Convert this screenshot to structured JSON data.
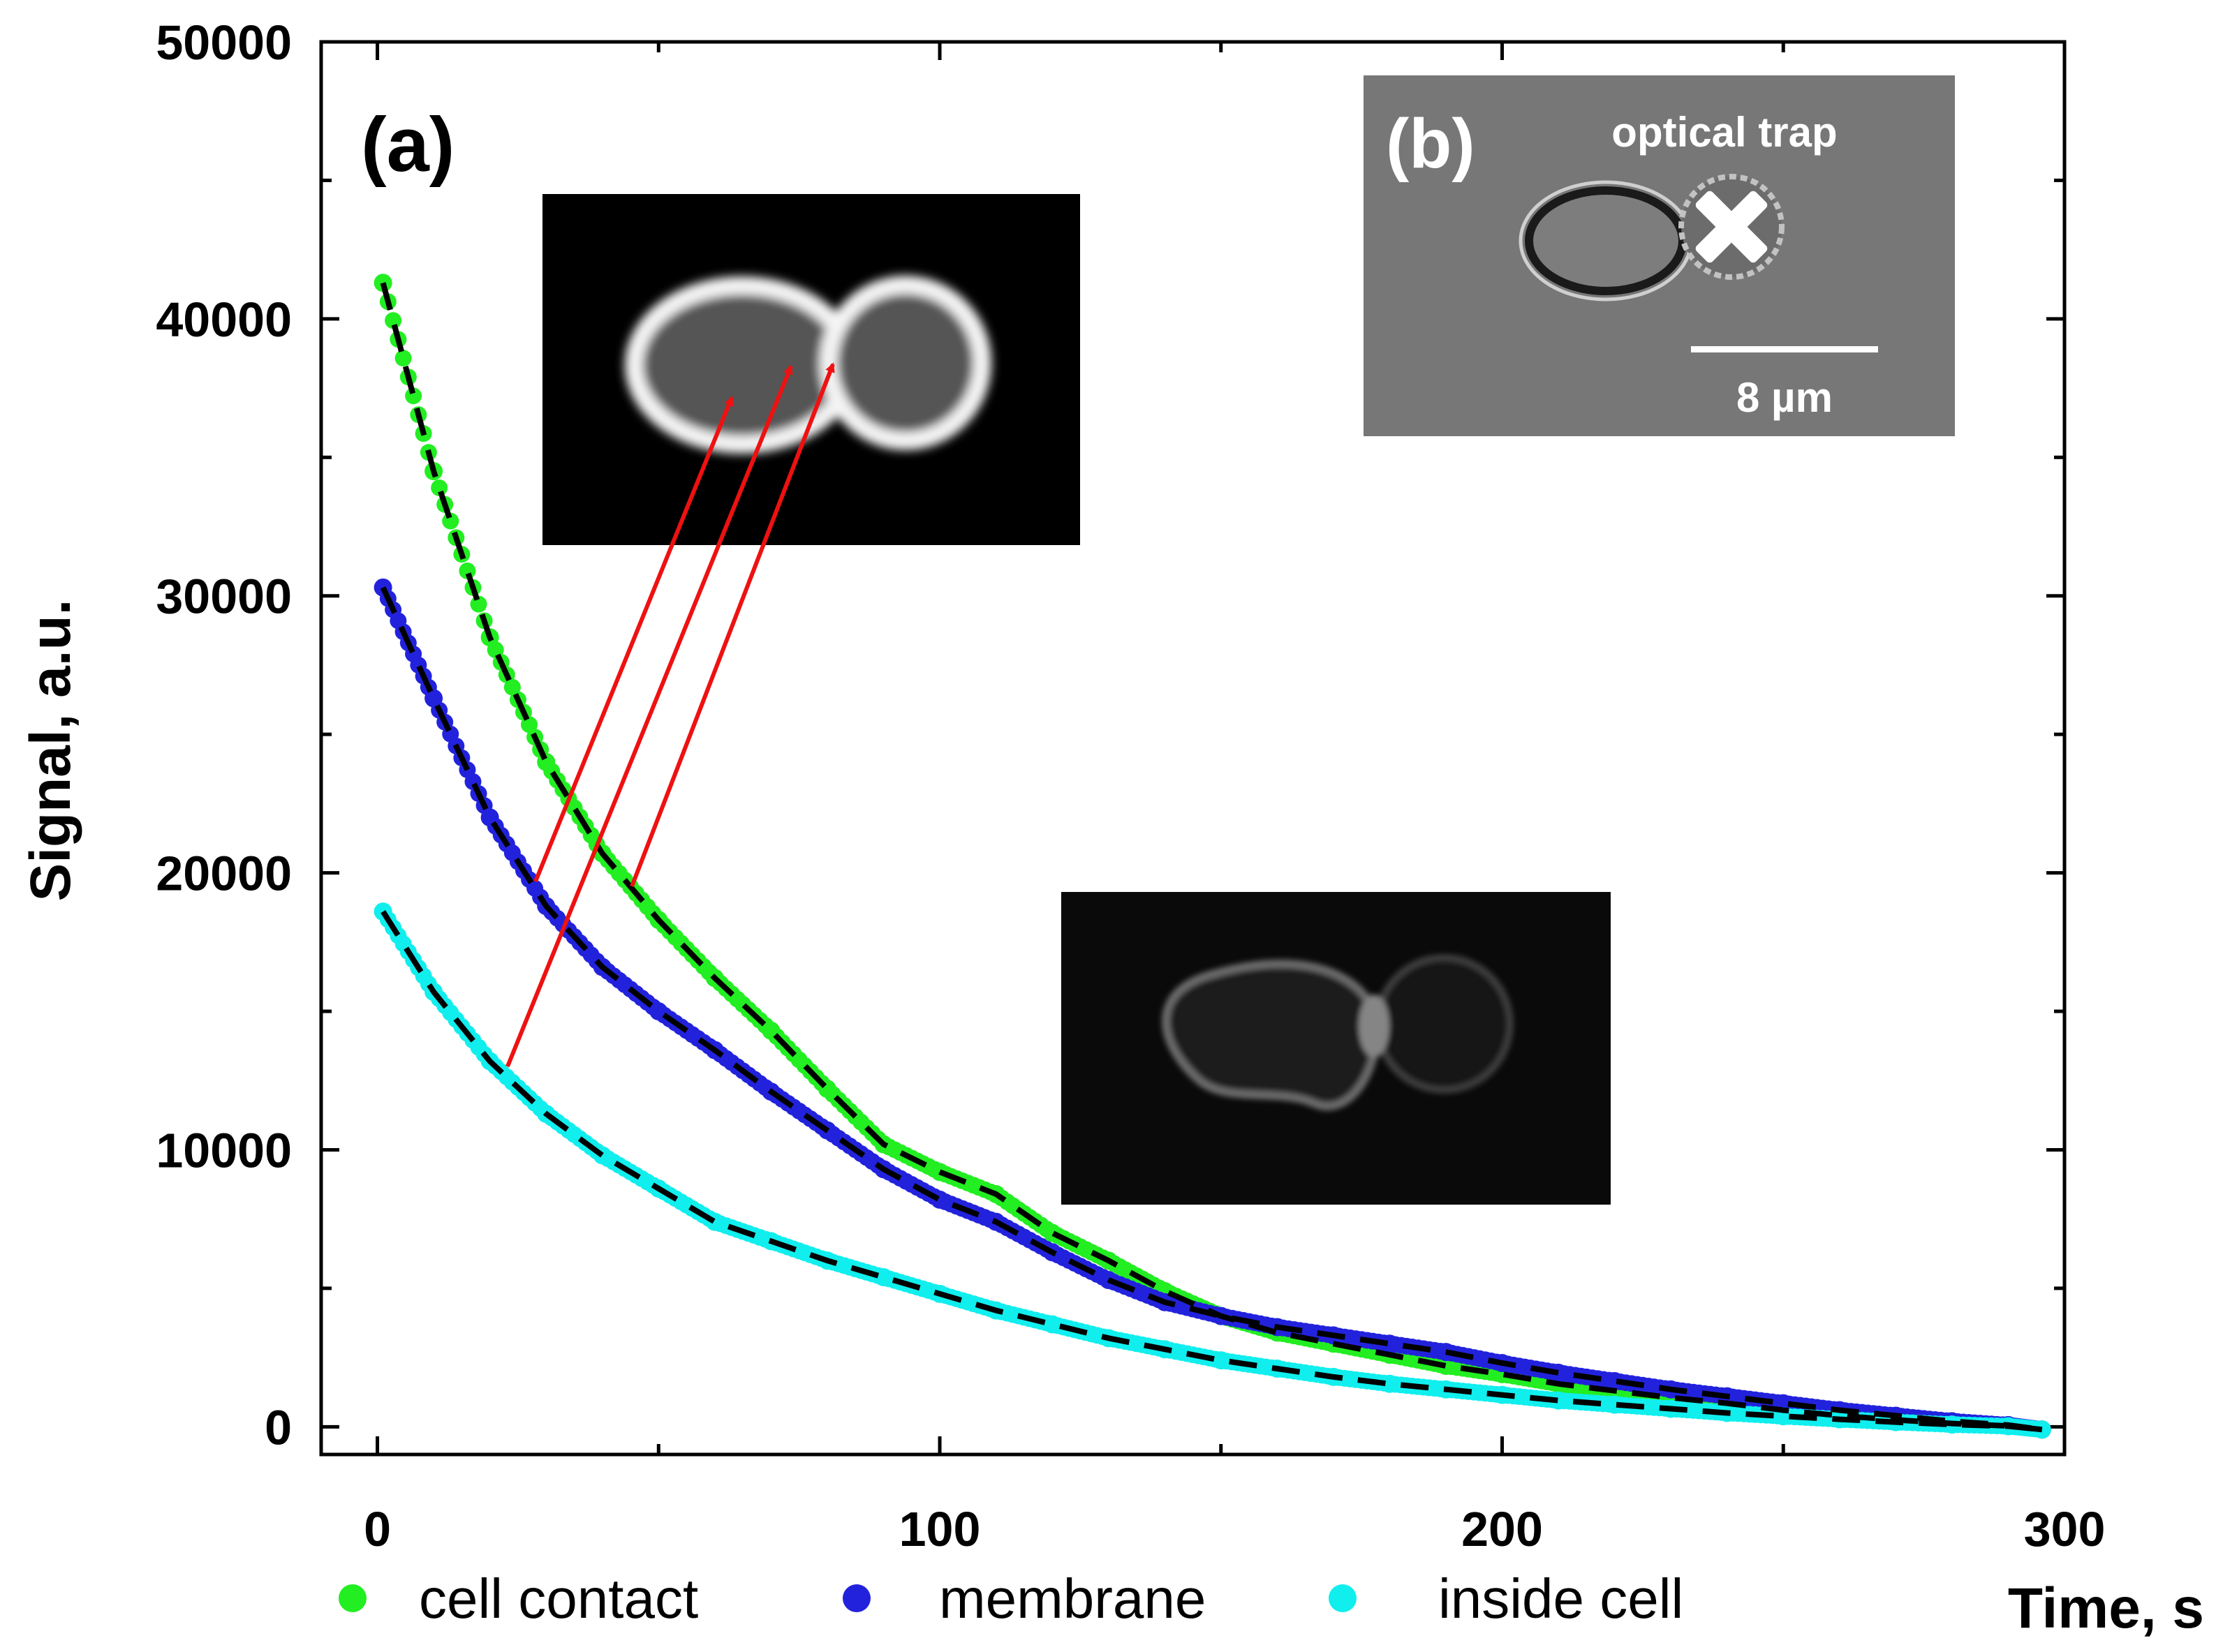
{
  "chart_data": {
    "type": "scatter",
    "title": "",
    "xlabel": "Time, s",
    "ylabel": "Signal, a.u.",
    "xlim": [
      -10,
      300
    ],
    "ylim": [
      -1000,
      50000
    ],
    "x_ticks": [
      0,
      100,
      200,
      300
    ],
    "x_tick_labels": [
      "0",
      "100",
      "200",
      "300"
    ],
    "y_ticks": [
      0,
      10000,
      20000,
      30000,
      40000,
      50000
    ],
    "y_tick_labels": [
      "0",
      "10000",
      "20000",
      "30000",
      "40000",
      "50000"
    ],
    "legend_position": "bottom",
    "panel_a_label": "(a)",
    "series": [
      {
        "name": "cell contact",
        "color": "#22ee22",
        "x": [
          1,
          10,
          20,
          30,
          40,
          50,
          60,
          70,
          80,
          90,
          100,
          110,
          120,
          130,
          140,
          150,
          160,
          170,
          180,
          190,
          200,
          210,
          220,
          230,
          240,
          250,
          260,
          270,
          280,
          290,
          296
        ],
        "y": [
          41300,
          34500,
          28500,
          24000,
          20700,
          18300,
          16200,
          14300,
          12200,
          10200,
          9200,
          8400,
          7000,
          6000,
          4900,
          4000,
          3400,
          3000,
          2600,
          2200,
          1900,
          1550,
          1300,
          1050,
          850,
          600,
          400,
          250,
          120,
          30,
          -100
        ]
      },
      {
        "name": "membrane",
        "color": "#2222dd",
        "x": [
          1,
          10,
          20,
          30,
          40,
          50,
          60,
          70,
          80,
          90,
          100,
          110,
          120,
          130,
          140,
          150,
          160,
          170,
          180,
          190,
          200,
          210,
          220,
          230,
          240,
          250,
          260,
          270,
          280,
          290,
          296
        ],
        "y": [
          30300,
          26300,
          22000,
          18800,
          16600,
          15000,
          13600,
          12100,
          10700,
          9300,
          8200,
          7400,
          6300,
          5300,
          4500,
          4000,
          3600,
          3300,
          3000,
          2700,
          2300,
          1950,
          1650,
          1350,
          1100,
          850,
          600,
          400,
          200,
          60,
          -100
        ]
      },
      {
        "name": "inside cell",
        "color": "#11eeee",
        "x": [
          1,
          10,
          20,
          30,
          40,
          50,
          60,
          70,
          80,
          90,
          100,
          110,
          120,
          130,
          140,
          150,
          160,
          170,
          180,
          190,
          200,
          210,
          220,
          230,
          240,
          250,
          260,
          270,
          280,
          290,
          296
        ],
        "y": [
          18600,
          15700,
          13200,
          11300,
          9800,
          8600,
          7400,
          6700,
          6000,
          5400,
          4800,
          4200,
          3700,
          3200,
          2800,
          2400,
          2100,
          1800,
          1550,
          1350,
          1150,
          950,
          800,
          650,
          500,
          380,
          270,
          170,
          80,
          20,
          -100
        ]
      }
    ],
    "fits": [
      {
        "name": "cell contact fit",
        "color": "#000000",
        "x0": 1,
        "x1": 296,
        "y0": 41300,
        "k": 0.0195,
        "offset": -1500
      },
      {
        "name": "membrane fit",
        "color": "#000000",
        "x0": 1,
        "x1": 296,
        "y0": 30300,
        "k": 0.0165,
        "offset": -1200
      },
      {
        "name": "inside cell fit",
        "color": "#000000",
        "x0": 1,
        "x1": 296,
        "y0": 18600,
        "k": 0.015,
        "offset": -900
      }
    ],
    "inset_b": {
      "label": "(b)",
      "annotation": "optical trap",
      "scale_bar": "8 µm",
      "marker": "x-mark"
    }
  }
}
